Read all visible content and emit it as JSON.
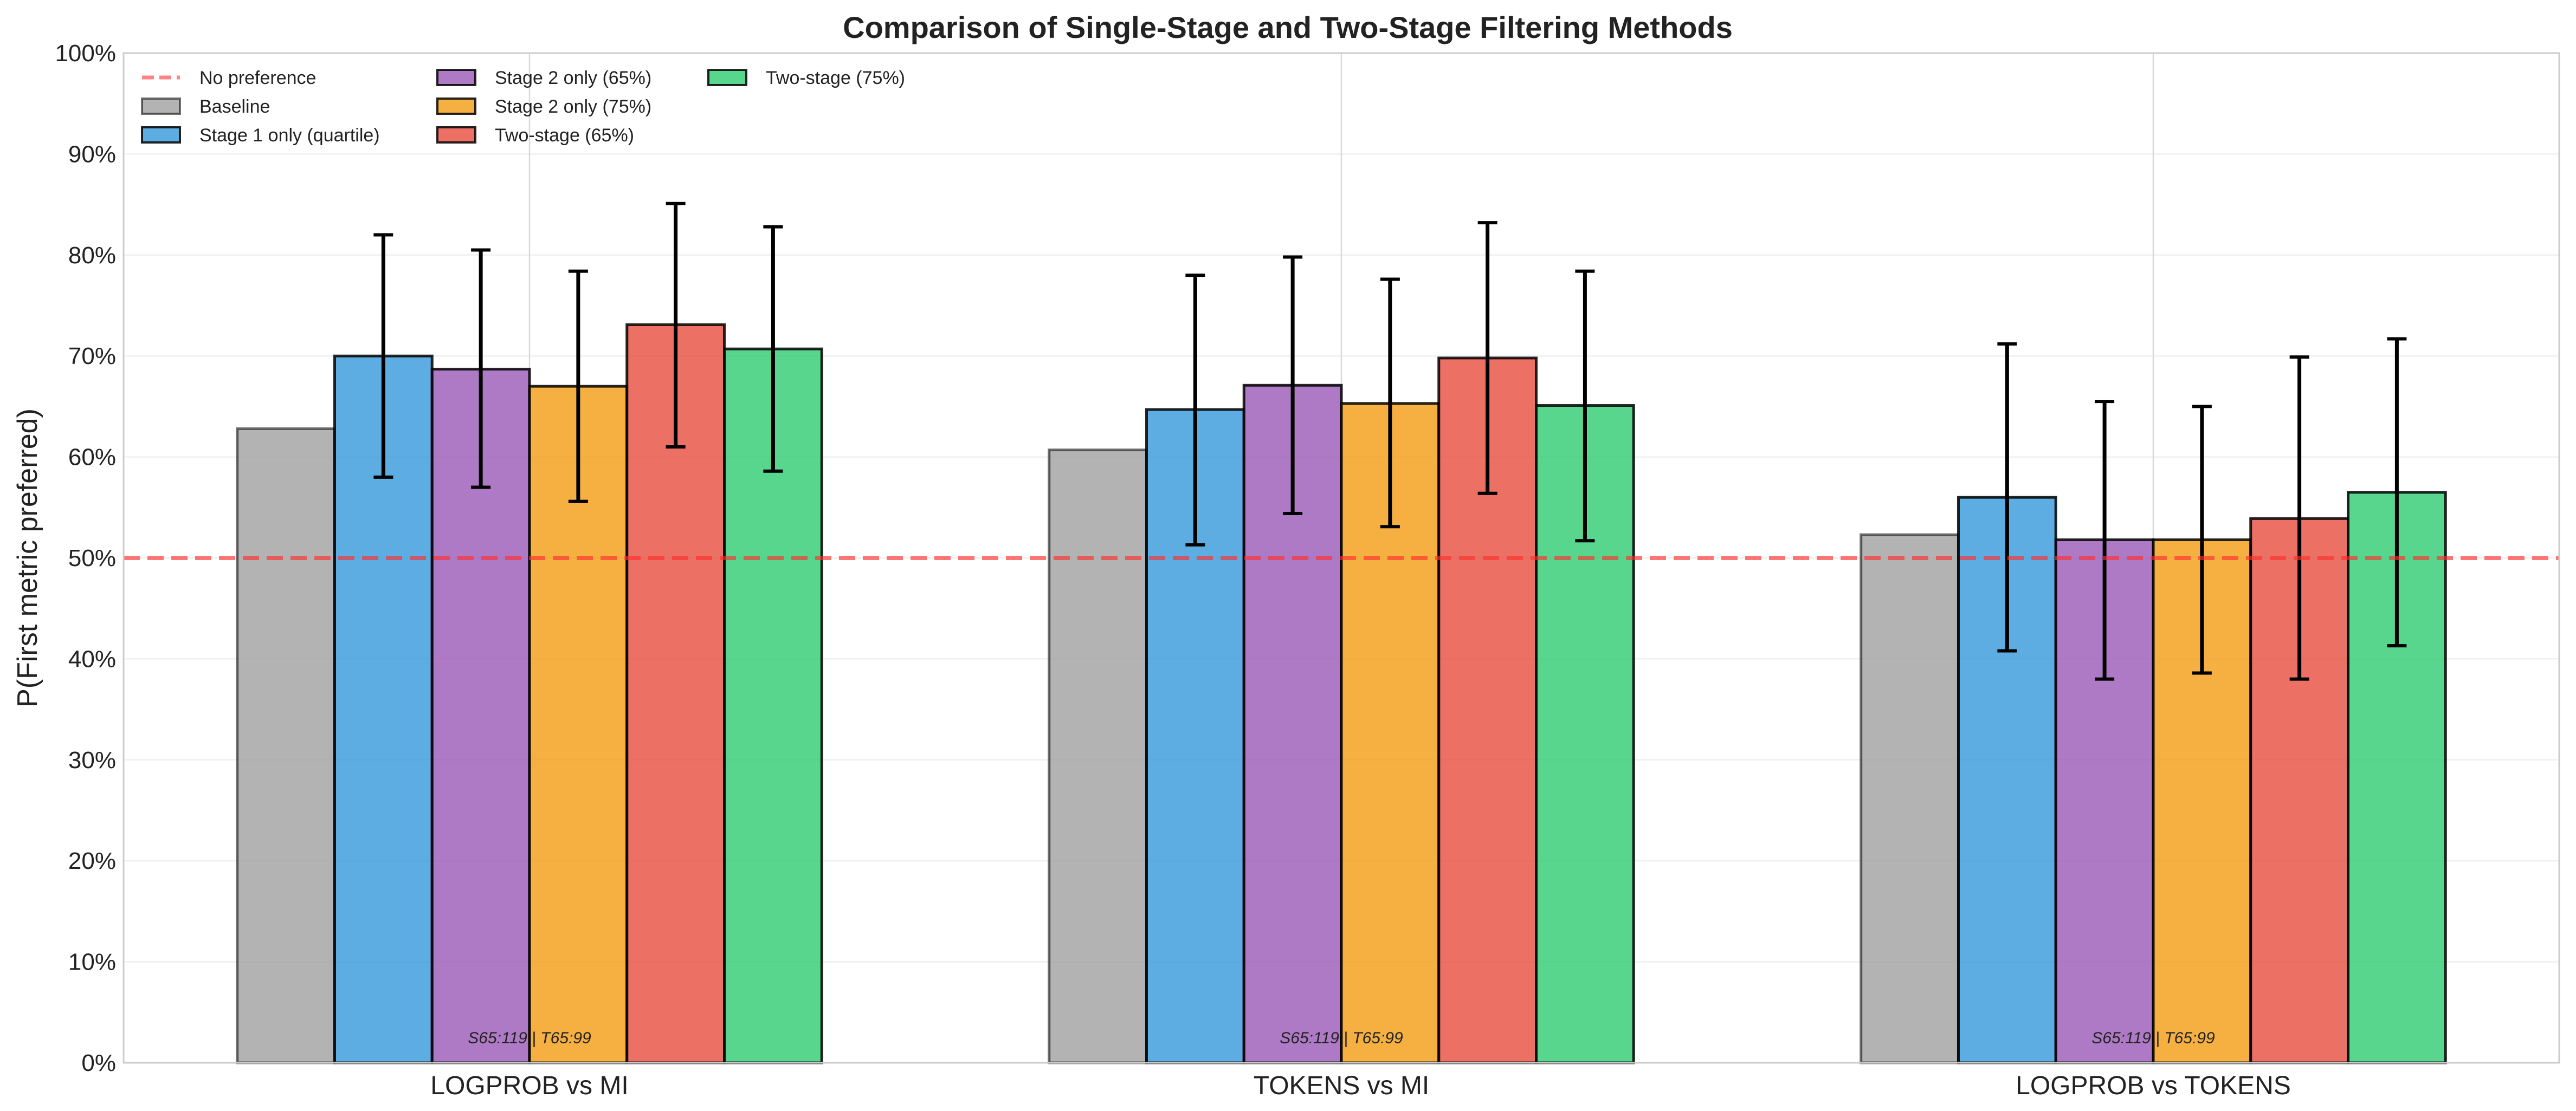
{
  "chart_data": {
    "type": "bar",
    "title": "Comparison of Single-Stage and Two-Stage Filtering Methods",
    "xlabel": "",
    "ylabel": "P(First metric preferred)",
    "ylim": [
      0,
      100
    ],
    "yticks": [
      0,
      10,
      20,
      30,
      40,
      50,
      60,
      70,
      80,
      90,
      100
    ],
    "ytick_suffix": "%",
    "grid": true,
    "legend_position": "top-left",
    "categories": [
      "LOGPROB vs MI",
      "TOKENS vs MI",
      "LOGPROB vs TOKENS"
    ],
    "reference_line": {
      "name": "No preference",
      "value": 50,
      "color": "#f08080",
      "style": "dashed"
    },
    "series": [
      {
        "name": "Baseline",
        "color": "#a0a0a0",
        "values": [
          62.8,
          60.7,
          52.3
        ],
        "error_low": null,
        "error_high": null
      },
      {
        "name": "Stage 1 only (quartile)",
        "color": "#3498db",
        "values": [
          70.0,
          64.7,
          56.0
        ],
        "error_low": [
          58.0,
          51.3,
          40.8
        ],
        "error_high": [
          82.0,
          78.0,
          71.2
        ]
      },
      {
        "name": "Stage 2 only (65%)",
        "color": "#9b59b6",
        "values": [
          68.7,
          67.1,
          51.8
        ],
        "error_low": [
          57.0,
          54.4,
          38.0
        ],
        "error_high": [
          80.5,
          79.8,
          65.5
        ]
      },
      {
        "name": "Stage 2 only (75%)",
        "color": "#f39c12",
        "values": [
          67.0,
          65.3,
          51.8
        ],
        "error_low": [
          55.6,
          53.1,
          38.6
        ],
        "error_high": [
          78.4,
          77.6,
          65.0
        ]
      },
      {
        "name": "Two-stage (65%)",
        "color": "#e74c3c",
        "values": [
          73.1,
          69.8,
          53.9
        ],
        "error_low": [
          61.0,
          56.4,
          38.0
        ],
        "error_high": [
          85.1,
          83.2,
          69.9
        ]
      },
      {
        "name": "Two-stage (75%)",
        "color": "#2ecc71",
        "values": [
          70.7,
          65.1,
          56.5
        ],
        "error_low": [
          58.6,
          51.7,
          41.3
        ],
        "error_high": [
          82.8,
          78.4,
          71.7
        ]
      }
    ],
    "annotations": [
      "S65:119 | T65:99",
      "S65:119 | T65:99",
      "S65:119 | T65:99"
    ]
  }
}
